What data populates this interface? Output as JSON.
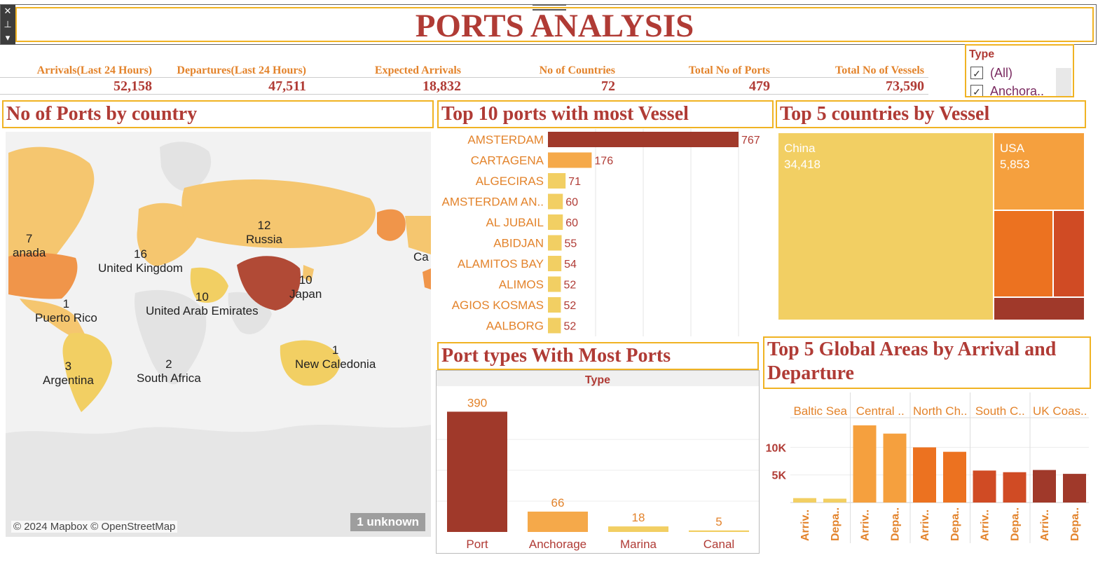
{
  "page_title": "PORTS ANALYSIS",
  "toolbar": {
    "close_glyph": "✕",
    "pin_glyph": "⊥",
    "menu_glyph": "▾"
  },
  "kpis": [
    {
      "label": "Arrivals(Last 24 Hours)",
      "value": "52,158"
    },
    {
      "label": "Departures(Last 24 Hours)",
      "value": "47,511"
    },
    {
      "label": "Expected Arrivals",
      "value": "18,832"
    },
    {
      "label": "No of Countries",
      "value": "72"
    },
    {
      "label": "Total No of  Ports",
      "value": "479"
    },
    {
      "label": "Total No of Vessels",
      "value": "73,590"
    }
  ],
  "type_filter": {
    "title": "Type",
    "items": [
      {
        "label": "(All)",
        "checked": true
      },
      {
        "label": "Anchora..",
        "checked": true
      }
    ]
  },
  "sections": {
    "map": "No of Ports by country",
    "top_ports": "Top 10 ports with most Vessel",
    "top_countries": "Top 5 countries by Vessel",
    "port_types": "Port types With Most Ports",
    "global_areas": "Top 5 Global Areas by Arrival and Departure"
  },
  "map": {
    "labels": [
      {
        "count": "7",
        "name": "anada"
      },
      {
        "count": "16",
        "name": "United Kingdom"
      },
      {
        "count": "12",
        "name": "Russia"
      },
      {
        "count": "10",
        "name": "Japan"
      },
      {
        "count": "10",
        "name": "United Arab Emirates"
      },
      {
        "count": "1",
        "name": "Puerto Rico"
      },
      {
        "count": "3",
        "name": "Argentina"
      },
      {
        "count": "2",
        "name": "South Africa"
      },
      {
        "count": "1",
        "name": "New Caledonia"
      },
      {
        "count": "",
        "name": "Ca"
      }
    ],
    "attribution": "© 2024 Mapbox © OpenStreetMap",
    "unknown_badge": "1 unknown"
  },
  "chart_data": [
    {
      "type": "bar",
      "orientation": "horizontal",
      "categories": [
        "AMSTERDAM",
        "CARTAGENA",
        "ALGECIRAS",
        "AMSTERDAM AN..",
        "AL JUBAIL",
        "ABIDJAN",
        "ALAMITOS BAY",
        "ALIMOS",
        "AGIOS KOSMAS",
        "AALBORG"
      ],
      "values": [
        767,
        176,
        71,
        60,
        60,
        55,
        54,
        52,
        52,
        52
      ],
      "xlim": [
        0,
        1000
      ],
      "colors": [
        "#a0392a",
        "#f5a94a",
        "#f2cf63",
        "#f2cf63",
        "#f2cf63",
        "#f2cf63",
        "#f2cf63",
        "#f2cf63",
        "#f2cf63",
        "#f2cf63"
      ]
    },
    {
      "type": "treemap",
      "items": [
        {
          "name": "China",
          "value": 34418,
          "label": "34,418",
          "color": "#f2cf63"
        },
        {
          "name": "USA",
          "value": 5853,
          "label": "5,853",
          "color": "#f5a03e"
        },
        {
          "name": "",
          "value": 3800,
          "label": "",
          "color": "#ec7220"
        },
        {
          "name": "",
          "value": 2600,
          "label": "",
          "color": "#d04b24"
        },
        {
          "name": "",
          "value": 1400,
          "label": "",
          "color": "#a0392a"
        }
      ]
    },
    {
      "type": "bar",
      "header": "Type",
      "categories": [
        "Port",
        "Anchorage",
        "Marina",
        "Canal"
      ],
      "values": [
        390,
        66,
        18,
        5
      ],
      "ylim": [
        0,
        400
      ],
      "colors": [
        "#a0392a",
        "#f5a94a",
        "#f2cf63",
        "#f2cf63"
      ]
    },
    {
      "type": "bar",
      "groups": [
        "Baltic Sea",
        "Central ..",
        "North Ch..",
        "South C..",
        "UK Coas.."
      ],
      "sub_categories": [
        "Arriv..",
        "Depa.."
      ],
      "values": [
        [
          800,
          700
        ],
        [
          14000,
          12500
        ],
        [
          10000,
          9200
        ],
        [
          5800,
          5500
        ],
        [
          5900,
          5200
        ]
      ],
      "colors": [
        "#f2cf63",
        "#f5a03e",
        "#ec7220",
        "#d04b24",
        "#a0392a"
      ],
      "yticks": [
        {
          "value": 5000,
          "label": "5K"
        },
        {
          "value": 10000,
          "label": "10K"
        }
      ],
      "ylim": [
        0,
        15000
      ]
    }
  ]
}
